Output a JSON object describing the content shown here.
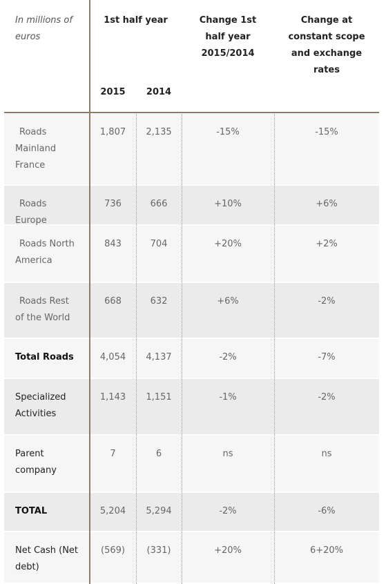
{
  "header": {
    "unit_label": "In millions of euros",
    "period": "1st half year",
    "years": [
      "2015",
      "2014"
    ],
    "change": "Change 1st half year 2015/2014",
    "change_constant": "Change at constant scope and exchange rates"
  },
  "table": {
    "rows": [
      [
        "Roads Mainland France",
        "1,807",
        "2,135",
        "-15%",
        "-15%"
      ],
      [
        "Roads Europe",
        "736",
        "666",
        "+10%",
        "+6%"
      ],
      [
        "Roads North America",
        "843",
        "704",
        "+20%",
        "+2%"
      ],
      [
        "Roads Rest of the World",
        "668",
        "632",
        "+6%",
        "-2%"
      ],
      [
        "Total Roads",
        "4,054",
        "4,137",
        "-2%",
        "-7%"
      ],
      [
        "Specialized Activities",
        "1,143",
        "1,151",
        "-1%",
        "-2%"
      ],
      [
        "Parent company",
        "7",
        "6",
        "ns",
        "ns"
      ],
      [
        "TOTAL",
        "5,204",
        "5,294",
        "-2%",
        "-6%"
      ],
      [
        "Net Cash (Net debt)",
        "(569)",
        "(331)",
        "+20%",
        "6+20%"
      ]
    ]
  }
}
